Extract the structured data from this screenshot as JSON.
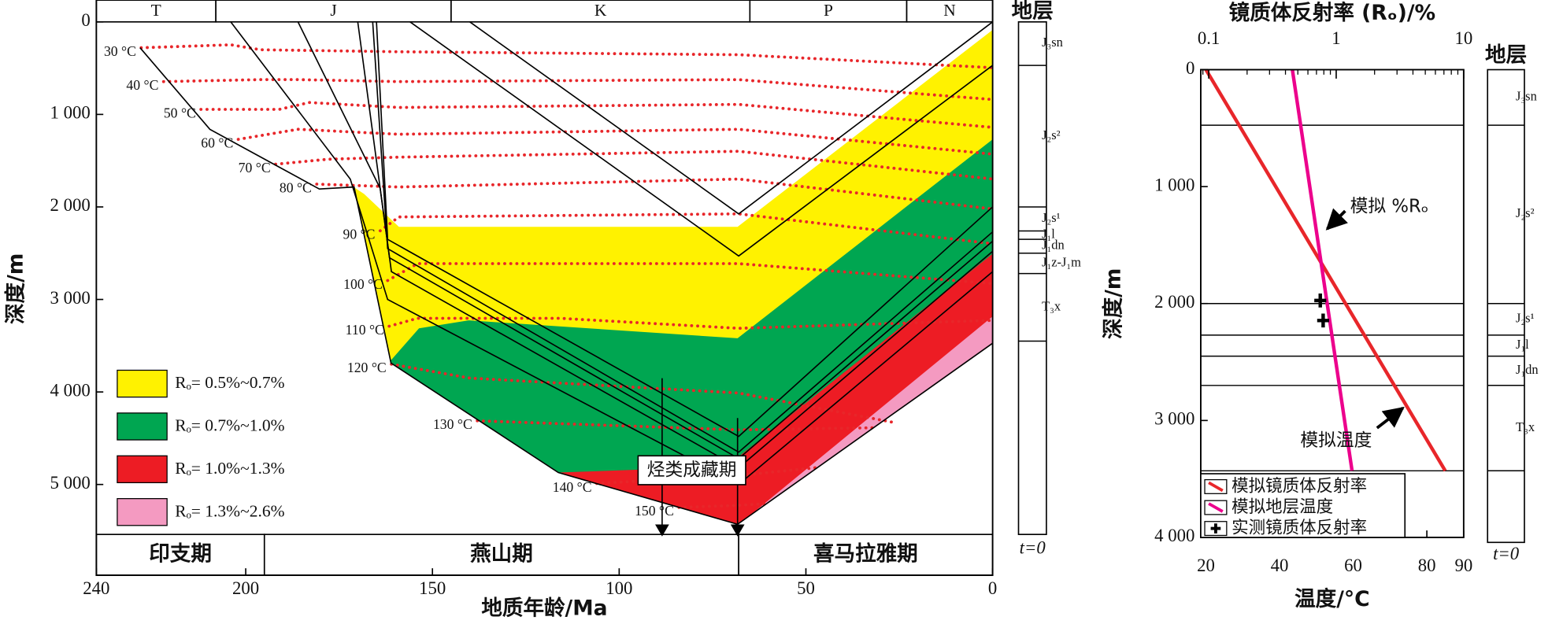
{
  "chart_data": [
    {
      "type": "burial",
      "xlabel": "地质年龄/Ma",
      "ylabel": "深度/m",
      "xlim": [
        240,
        0
      ],
      "xticks": [
        240,
        200,
        150,
        100,
        50,
        0
      ],
      "ylim": [
        0,
        5540
      ],
      "yticks": [
        0,
        {
          "value": 1000,
          "label": "1 000"
        },
        {
          "value": 2000,
          "label": "2 000"
        },
        {
          "value": 3000,
          "label": "3 000"
        },
        {
          "value": 4000,
          "label": "4 000"
        },
        {
          "value": 5000,
          "label": "5 000"
        }
      ],
      "periods": [
        {
          "label": "T",
          "start": 240,
          "end": 208
        },
        {
          "label": "J",
          "start": 208,
          "end": 145
        },
        {
          "label": "K",
          "start": 145,
          "end": 65
        },
        {
          "label": "P",
          "start": 65,
          "end": 23
        },
        {
          "label": "N",
          "start": 23,
          "end": 0
        }
      ],
      "eras": [
        {
          "label": "印支期",
          "start": 240,
          "end": 195
        },
        {
          "label": "燕山期",
          "start": 195,
          "end": 68
        },
        {
          "label": "喜马拉雅期",
          "start": 68,
          "end": 0
        }
      ],
      "zones": [
        {
          "name": "Rₒ= 0.5%~0.7%",
          "color": "#fff200",
          "x": [
            172.3,
            168.3,
            159,
            68.3,
            0,
            0,
            68.3,
            116.3,
            161.1,
            171
          ],
          "y": [
            1753,
            1860,
            2215,
            2215,
            86,
            3473,
            5430,
            4871,
            3688,
            1785
          ]
        },
        {
          "name": "Rₒ= 0.7%~1.0%",
          "color": "#00a651",
          "x": [
            161.1,
            153.6,
            140.3,
            68.3,
            0,
            0,
            68.3,
            116.3,
            161.1
          ],
          "y": [
            3656,
            3312,
            3226,
            3420,
            1269,
            3473,
            5430,
            4871,
            3688
          ]
        },
        {
          "name": "Rₒ= 1.0%~1.3%",
          "color": "#ed1c24",
          "x": [
            116.3,
            79,
            68.3,
            0,
            0,
            68.3
          ],
          "y": [
            4871,
            4817,
            4710,
            2505,
            3473,
            5430
          ]
        },
        {
          "name": "Rₒ= 1.3%~2.6%",
          "color": "#f49ac1",
          "x": [
            65.6,
            0,
            0,
            68.3
          ],
          "y": [
            5355,
            3183,
            3473,
            5430
          ]
        }
      ],
      "horizons": [
        {
          "x": [
            140,
            68,
            0
          ],
          "y": [
            0,
            2075,
            0
          ]
        },
        {
          "x": [
            156,
            68,
            0
          ],
          "y": [
            0,
            2530,
            470
          ]
        },
        {
          "x": [
            165,
            162,
            68,
            0
          ],
          "y": [
            0,
            2350,
            4480,
            2000
          ]
        },
        {
          "x": [
            166,
            162,
            68,
            0
          ],
          "y": [
            0,
            2450,
            4650,
            2270
          ]
        },
        {
          "x": [
            170,
            161.5,
            68,
            0
          ],
          "y": [
            0,
            2550,
            4720,
            2370
          ]
        },
        {
          "x": [
            186,
            164,
            161,
            68,
            0
          ],
          "y": [
            0,
            1800,
            2700,
            4820,
            2480
          ]
        },
        {
          "x": [
            204,
            172,
            162,
            68,
            0
          ],
          "y": [
            0,
            1700,
            3000,
            5000,
            2700
          ]
        },
        {
          "x": [
            228.3,
            209.6,
            194.9,
            180.3,
            171,
            161.1,
            116.3,
            68.3,
            0
          ],
          "y": [
            280,
            1161,
            1484,
            1806,
            1785,
            3688,
            4871,
            5430,
            3473
          ]
        }
      ],
      "isotherms": {
        "color": "#e8262a",
        "lines": [
          {
            "label": "30 °C",
            "x": [
              228,
              204,
              196,
              159,
              68,
              0
            ],
            "y": [
              280,
              247,
              301,
              323,
              355,
              495
            ]
          },
          {
            "label": "40 °C",
            "x": [
              222,
              196,
              186,
              159,
              68,
              0
            ],
            "y": [
              645,
              624,
              624,
              645,
              624,
              839
            ]
          },
          {
            "label": "50 °C",
            "x": [
              212,
              191,
              183,
              159,
              68,
              0
            ],
            "y": [
              946,
              946,
              871,
              925,
              892,
              1140
            ]
          },
          {
            "label": "60 °C",
            "x": [
              202,
              186,
              159,
              68,
              0
            ],
            "y": [
              1269,
              1161,
              1215,
              1161,
              1430
            ]
          },
          {
            "label": "70 °C",
            "x": [
              192,
              178,
              159,
              68,
              0
            ],
            "y": [
              1538,
              1484,
              1462,
              1398,
              1699
            ]
          },
          {
            "label": "80 °C",
            "x": [
              181,
              159,
              68,
              0
            ],
            "y": [
              1753,
              1785,
              1699,
              2022
            ]
          },
          {
            "label": "90 °C",
            "x": [
              164,
              159,
              68,
              0
            ],
            "y": [
              2258,
              2108,
              2075,
              2398
            ]
          },
          {
            "label": "100 °C",
            "x": [
              162,
              154,
              68,
              0
            ],
            "y": [
              2796,
              2613,
              2613,
              2828
            ]
          },
          {
            "label": "110 °C",
            "x": [
              161.6,
              154,
              116,
              68,
              0
            ],
            "y": [
              3290,
              3204,
              3204,
              3312,
              3226
            ]
          },
          {
            "label": "120 °C",
            "x": [
              161,
              140,
              68,
              26
            ],
            "y": [
              3699,
              3850,
              4011,
              4333
            ]
          },
          {
            "label": "130 °C",
            "x": [
              138,
              68,
              32
            ],
            "y": [
              4312,
              4409,
              4387
            ]
          },
          {
            "label": "140 °C",
            "x": [
              106,
              68,
              47
            ],
            "y": [
              4989,
              4903,
              4817
            ]
          },
          {
            "label": "150 °C",
            "x": [
              84,
              68,
              60
            ],
            "y": [
              5247,
              5226,
              5204
            ]
          }
        ]
      },
      "annotation": {
        "text": "烃类成藏期",
        "x": [
          88.5,
          68.3
        ]
      },
      "column": {
        "title": "地层",
        "footer": "t=0",
        "units": [
          {
            "label": "J₃sn",
            "top": 0,
            "bottom": 470
          },
          {
            "label": "J₂s²",
            "top": 470,
            "bottom": 2000
          },
          {
            "label": "J₂s¹",
            "top": 2000,
            "bottom": 2260
          },
          {
            "label": "J₁l",
            "top": 2260,
            "bottom": 2350
          },
          {
            "label": "J₁dn",
            "top": 2350,
            "bottom": 2500
          },
          {
            "label": "J₁z-J₁m",
            "top": 2500,
            "bottom": 2720
          },
          {
            "label": "T₃x",
            "top": 2720,
            "bottom": 3450
          }
        ]
      }
    },
    {
      "type": "profile",
      "xlabel": "温度/°C",
      "x2label": "镜质体反射率 (Rₒ)/%",
      "ylabel": "深度/m",
      "xlim": [
        18.6,
        90
      ],
      "xticks": [
        20,
        40,
        60,
        80,
        90
      ],
      "x2lim": [
        0.0866,
        10
      ],
      "x2ticks": [
        0.1,
        1,
        10
      ],
      "x2log": true,
      "ylim": [
        0,
        4000
      ],
      "yticks": [
        0,
        {
          "value": 1000,
          "label": "1 000"
        },
        {
          "value": 2000,
          "label": "2 000"
        },
        {
          "value": 3000,
          "label": "3 000"
        },
        {
          "value": 4000,
          "label": "4 000"
        }
      ],
      "curves": [
        {
          "axis": "x",
          "color": "#e8262a",
          "x": [
            20,
            85
          ],
          "y": [
            0,
            3430
          ]
        },
        {
          "axis": "x2",
          "color": "#ec008c",
          "x": [
            0.453,
            1.33
          ],
          "y": [
            0,
            3430
          ]
        }
      ],
      "measured": {
        "axis": "x2",
        "color": "#000000",
        "x": [
          0.75,
          0.79
        ],
        "y": [
          1974,
          2145
        ]
      },
      "legend": [
        {
          "label": "模拟镜质体反射率",
          "color": "#e8262a",
          "marker": "line"
        },
        {
          "label": "模拟地层温度",
          "color": "#ec008c",
          "marker": "line"
        },
        {
          "label": "实测镜质体反射率",
          "color": "#000000",
          "marker": "plus"
        }
      ],
      "annotations": [
        {
          "text": "模拟 %Rₒ"
        },
        {
          "text": "模拟温度"
        }
      ],
      "column": {
        "title": "地层",
        "footer": "t=0",
        "units": [
          {
            "label": "J₃sn",
            "top": 0,
            "bottom": 475
          },
          {
            "label": "J₂s²",
            "top": 475,
            "bottom": 2000
          },
          {
            "label": "J₂s¹",
            "top": 2000,
            "bottom": 2270
          },
          {
            "label": "J₁l",
            "top": 2270,
            "bottom": 2450
          },
          {
            "label": "J₁dn",
            "top": 2450,
            "bottom": 2700
          },
          {
            "label": "T₃x",
            "top": 2700,
            "bottom": 3430
          }
        ]
      }
    }
  ]
}
